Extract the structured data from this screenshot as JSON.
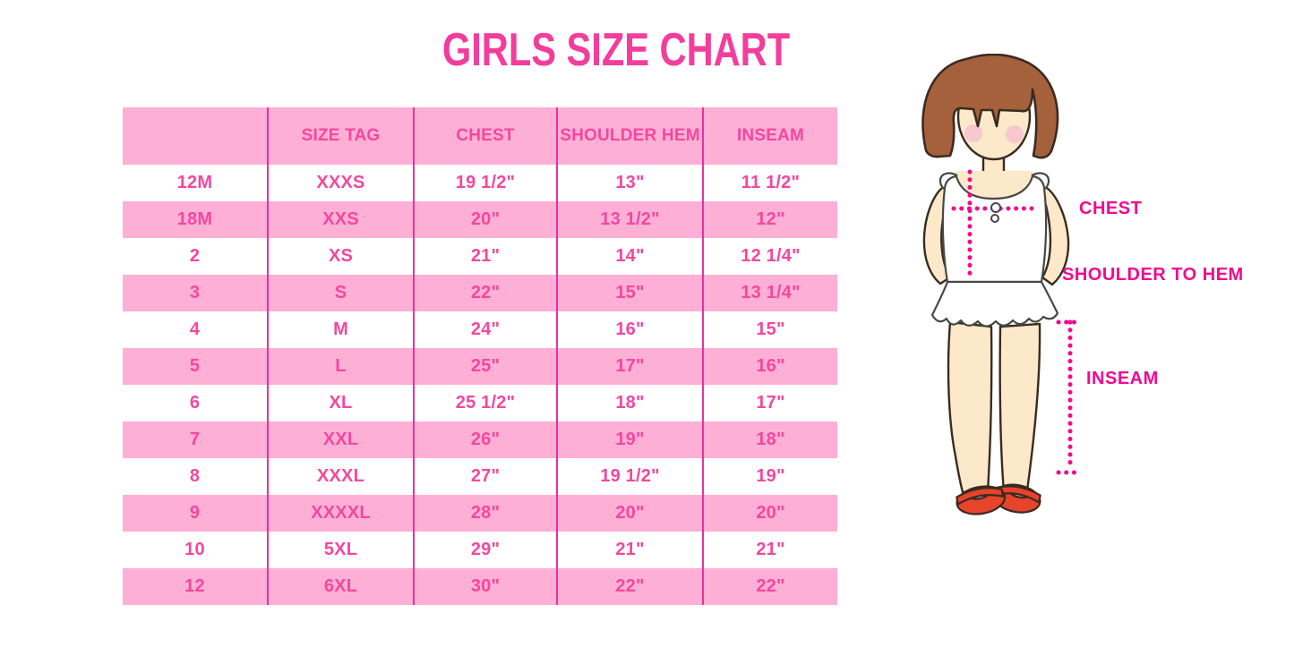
{
  "title": "GIRLS SIZE CHART",
  "colors": {
    "title-pink": "#F33D9C",
    "cell-text-pink": "#F4479F",
    "row-pink": "#FEAFD6",
    "divider-pink": "#E9319A",
    "label-pink": "#F2098E",
    "hair-brown": "#A4613C",
    "outline-dark": "#3B2B21",
    "skin": "#FBE9C9",
    "blush": "#F6C4CD",
    "shoe-red": "#E8432B"
  },
  "chart_data": {
    "type": "table",
    "title": "GIRLS SIZE CHART",
    "columns": [
      "",
      "SIZE TAG",
      "CHEST",
      "SHOULDER HEM",
      "INSEAM"
    ],
    "rows": [
      [
        "12M",
        "XXXS",
        "19 1/2\"",
        "13\"",
        "11 1/2\""
      ],
      [
        "18M",
        "XXS",
        "20\"",
        "13 1/2\"",
        "12\""
      ],
      [
        "2",
        "XS",
        "21\"",
        "14\"",
        "12 1/4\""
      ],
      [
        "3",
        "S",
        "22\"",
        "15\"",
        "13 1/4\""
      ],
      [
        "4",
        "M",
        "24\"",
        "16\"",
        "15\""
      ],
      [
        "5",
        "L",
        "25\"",
        "17\"",
        "16\""
      ],
      [
        "6",
        "XL",
        "25 1/2\"",
        "18\"",
        "17\""
      ],
      [
        "7",
        "XXL",
        "26\"",
        "19\"",
        "18\""
      ],
      [
        "8",
        "XXXL",
        "27\"",
        "19 1/2\"",
        "19\""
      ],
      [
        "9",
        "XXXXL",
        "28\"",
        "20\"",
        "20\""
      ],
      [
        "10",
        "5XL",
        "29\"",
        "21\"",
        "21\""
      ],
      [
        "12",
        "6XL",
        "30\"",
        "22\"",
        "22\""
      ]
    ],
    "row_stripe_pattern": "white/pink alternating, header pink",
    "legend_position": "none",
    "grid": "vertical magenta dividers only"
  },
  "figure": {
    "chest_label": "CHEST",
    "shoulder_hem_label": "SHOULDER TO HEM",
    "inseam_label": "INSEAM"
  }
}
